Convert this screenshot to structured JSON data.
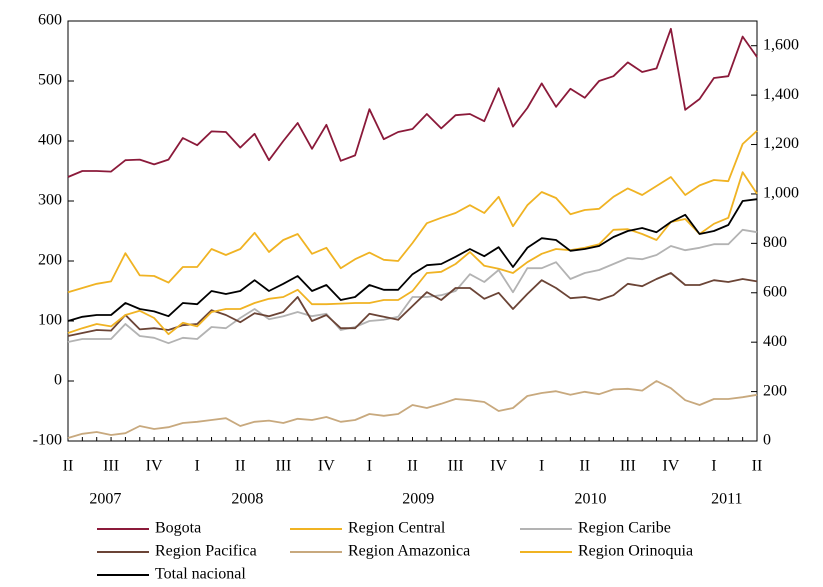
{
  "chart_data": {
    "type": "line",
    "categories": [
      "II",
      null,
      null,
      "III",
      null,
      null,
      "IV",
      null,
      null,
      "I",
      null,
      null,
      "II",
      null,
      null,
      "III",
      null,
      null,
      "IV",
      null,
      null,
      "I",
      null,
      null,
      "II",
      null,
      null,
      "III",
      null,
      null,
      "IV",
      null,
      null,
      "I",
      null,
      null,
      "II",
      null,
      null,
      "III",
      null,
      null,
      "IV",
      null,
      null,
      "I",
      null,
      null,
      "II"
    ],
    "year_labels": [
      "2007",
      "2008",
      "2009",
      "2010",
      "2011"
    ],
    "ylim": [
      -100,
      600
    ],
    "yticks": [
      -100,
      0,
      100,
      200,
      300,
      400,
      500,
      600
    ],
    "y2lim": [
      0,
      1700
    ],
    "y2ticks": [
      0,
      200,
      400,
      600,
      800,
      {
        "value": 1000,
        "label": "1,000"
      },
      {
        "value": 1200,
        "label": "1,200"
      },
      {
        "value": 1400,
        "label": "1,400"
      },
      {
        "value": 1600,
        "label": "1,600"
      }
    ],
    "series": [
      {
        "name": "Bogota",
        "color": "#8b1a3a",
        "values": [
          340,
          350,
          350,
          349,
          368,
          369,
          361,
          369,
          405,
          393,
          416,
          415,
          389,
          412,
          368,
          400,
          430,
          387,
          427,
          367,
          376,
          453,
          403,
          415,
          420,
          445,
          421,
          443,
          445,
          433,
          488,
          424,
          455,
          496,
          457,
          487,
          472,
          500,
          508,
          531,
          515,
          521,
          587,
          452,
          470,
          505,
          508,
          574,
          540
        ]
      },
      {
        "name": "Region Central",
        "color": "#f0b323",
        "values": [
          148,
          155,
          162,
          166,
          213,
          176,
          175,
          164,
          190,
          190,
          220,
          210,
          220,
          247,
          215,
          235,
          245,
          212,
          222,
          188,
          203,
          214,
          202,
          200,
          230,
          263,
          272,
          280,
          293,
          280,
          307,
          258,
          293,
          315,
          305,
          278,
          285,
          287,
          307,
          321,
          310,
          325,
          340,
          310,
          326,
          335,
          333,
          395,
          417
        ]
      },
      {
        "name": "Region Caribe",
        "color": "#b3b3b3",
        "values": [
          65,
          70,
          70,
          70,
          95,
          75,
          72,
          63,
          72,
          70,
          90,
          88,
          105,
          120,
          103,
          108,
          115,
          108,
          112,
          85,
          90,
          100,
          102,
          107,
          140,
          140,
          143,
          150,
          178,
          165,
          185,
          148,
          188,
          188,
          198,
          170,
          180,
          185,
          195,
          205,
          203,
          210,
          225,
          218,
          222,
          228,
          228,
          252,
          248
        ]
      },
      {
        "name": "Region Pacifica",
        "color": "#6b4436",
        "values": [
          75,
          80,
          85,
          84,
          110,
          86,
          88,
          85,
          93,
          95,
          118,
          110,
          98,
          113,
          108,
          115,
          140,
          100,
          110,
          88,
          88,
          112,
          107,
          102,
          125,
          148,
          135,
          155,
          155,
          137,
          147,
          120,
          145,
          168,
          155,
          138,
          140,
          135,
          143,
          162,
          158,
          170,
          180,
          160,
          160,
          168,
          165,
          170,
          166
        ]
      },
      {
        "name": "Region Amazonica",
        "color": "#c8a97e",
        "values": [
          -95,
          -88,
          -85,
          -90,
          -87,
          -75,
          -80,
          -77,
          -70,
          -68,
          -65,
          -62,
          -75,
          -68,
          -66,
          -70,
          -63,
          -65,
          -60,
          -68,
          -65,
          -55,
          -58,
          -55,
          -40,
          -45,
          -38,
          -30,
          -32,
          -35,
          -50,
          -45,
          -25,
          -20,
          -17,
          -23,
          -18,
          -22,
          -14,
          -13,
          -16,
          0,
          -12,
          -32,
          -40,
          -30,
          -30,
          -27,
          -23
        ]
      },
      {
        "name": "Region Orinoquia",
        "color": "#f0b323",
        "values": [
          80,
          88,
          95,
          91,
          110,
          117,
          105,
          78,
          97,
          91,
          115,
          120,
          120,
          130,
          137,
          140,
          152,
          128,
          128,
          129,
          130,
          130,
          135,
          135,
          150,
          180,
          182,
          195,
          215,
          192,
          187,
          180,
          198,
          212,
          220,
          218,
          222,
          228,
          252,
          253,
          245,
          235,
          265,
          270,
          245,
          262,
          272,
          348,
          312
        ]
      },
      {
        "name": "Total nacional",
        "color": "#000000",
        "values": [
          100,
          107,
          110,
          110,
          130,
          120,
          116,
          108,
          130,
          128,
          150,
          145,
          150,
          168,
          150,
          162,
          175,
          150,
          160,
          135,
          140,
          160,
          152,
          152,
          178,
          193,
          195,
          207,
          220,
          208,
          223,
          190,
          222,
          238,
          235,
          217,
          220,
          225,
          240,
          250,
          255,
          248,
          265,
          277,
          245,
          250,
          260,
          300,
          303
        ]
      }
    ]
  }
}
